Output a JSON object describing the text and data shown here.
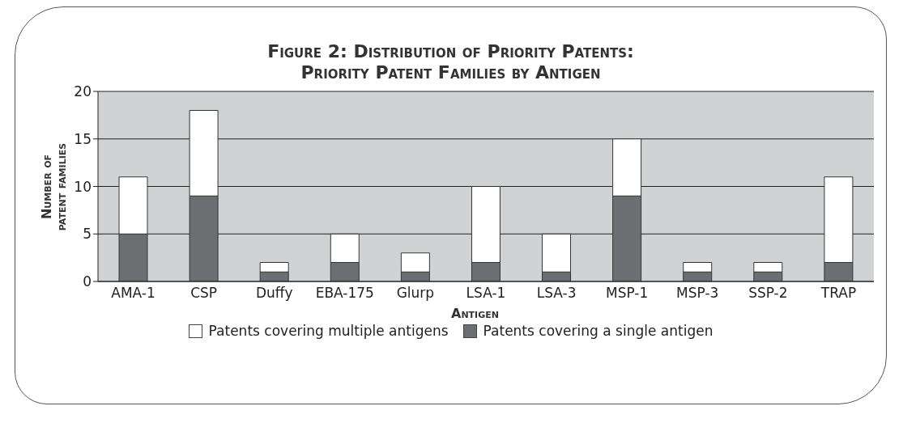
{
  "chart_data": {
    "type": "bar",
    "title": "Figure 2: Distribution of Priority Patents:\nPriority Patent Families by Antigen",
    "xlabel": "Antigen",
    "ylabel": "Number of\npatent families",
    "categories": [
      "AMA-1",
      "CSP",
      "Duffy",
      "EBA-175",
      "Glurp",
      "LSA-1",
      "LSA-3",
      "MSP-1",
      "MSP-3",
      "SSP-2",
      "TRAP"
    ],
    "series": [
      {
        "name": "Patents covering a single antigen",
        "color": "#6d6e71",
        "values": [
          5,
          9,
          1,
          2,
          1,
          2,
          1,
          9,
          1,
          1,
          2
        ]
      },
      {
        "name": "Patents covering multiple antigens",
        "color": "#ffffff",
        "values": [
          6,
          9,
          1,
          3,
          2,
          8,
          4,
          6,
          1,
          1,
          9
        ]
      }
    ],
    "stacked": true,
    "ylim": [
      0,
      20
    ],
    "yticks": [
      0,
      5,
      10,
      15,
      20
    ],
    "grid": "y",
    "legend": "bottom"
  }
}
